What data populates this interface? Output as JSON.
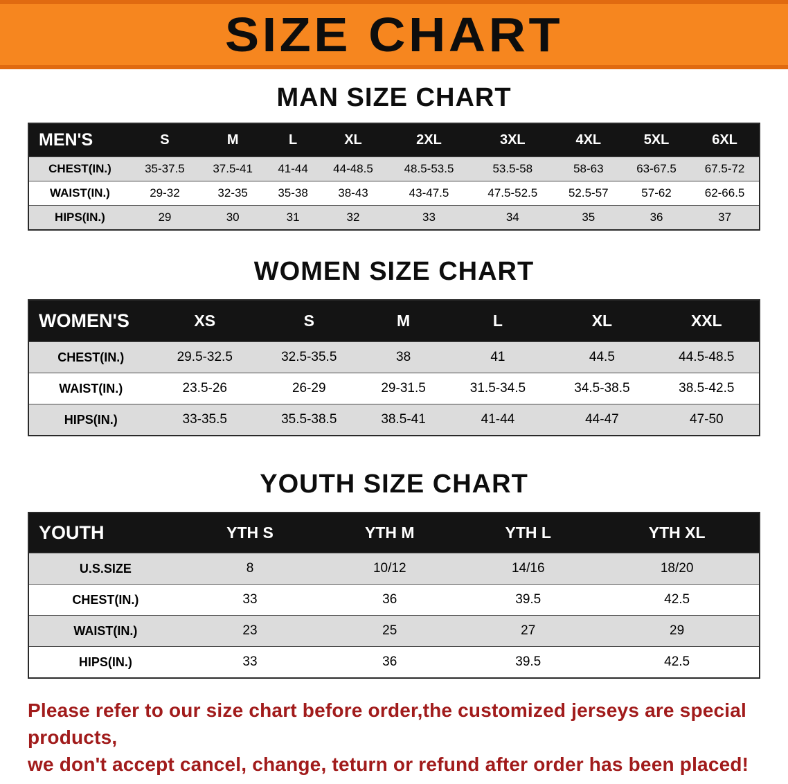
{
  "banner": {
    "title": "SIZE CHART"
  },
  "colors": {
    "banner_bg": "#F6861F",
    "banner_edge": "#E06A10",
    "header_bg": "#141414",
    "shaded_row": "#DCDCDC",
    "disclaimer_red": "#A11B1B"
  },
  "sections": [
    {
      "id": "men",
      "heading": "MAN SIZE CHART",
      "table": {
        "header": [
          "MEN'S",
          "S",
          "M",
          "L",
          "XL",
          "2XL",
          "3XL",
          "4XL",
          "5XL",
          "6XL"
        ],
        "rows": [
          [
            "CHEST(IN.)",
            "35-37.5",
            "37.5-41",
            "41-44",
            "44-48.5",
            "48.5-53.5",
            "53.5-58",
            "58-63",
            "63-67.5",
            "67.5-72"
          ],
          [
            "WAIST(IN.)",
            "29-32",
            "32-35",
            "35-38",
            "38-43",
            "43-47.5",
            "47.5-52.5",
            "52.5-57",
            "57-62",
            "62-66.5"
          ],
          [
            "HIPS(IN.)",
            "29",
            "30",
            "31",
            "32",
            "33",
            "34",
            "35",
            "36",
            "37"
          ]
        ]
      }
    },
    {
      "id": "women",
      "heading": "WOMEN SIZE CHART",
      "table": {
        "header": [
          "WOMEN'S",
          "XS",
          "S",
          "M",
          "L",
          "XL",
          "XXL"
        ],
        "rows": [
          [
            "CHEST(IN.)",
            "29.5-32.5",
            "32.5-35.5",
            "38",
            "41",
            "44.5",
            "44.5-48.5"
          ],
          [
            "WAIST(IN.)",
            "23.5-26",
            "26-29",
            "29-31.5",
            "31.5-34.5",
            "34.5-38.5",
            "38.5-42.5"
          ],
          [
            "HIPS(IN.)",
            "33-35.5",
            "35.5-38.5",
            "38.5-41",
            "41-44",
            "44-47",
            "47-50"
          ]
        ]
      }
    },
    {
      "id": "youth",
      "heading": "YOUTH SIZE CHART",
      "table": {
        "header": [
          "YOUTH",
          "YTH S",
          "YTH M",
          "YTH L",
          "YTH XL"
        ],
        "rows": [
          [
            "U.S.SIZE",
            "8",
            "10/12",
            "14/16",
            "18/20"
          ],
          [
            "CHEST(IN.)",
            "33",
            "36",
            "39.5",
            "42.5"
          ],
          [
            "WAIST(IN.)",
            "23",
            "25",
            "27",
            "29"
          ],
          [
            "HIPS(IN.)",
            "33",
            "36",
            "39.5",
            "42.5"
          ]
        ]
      }
    }
  ],
  "disclaimer": {
    "lines": [
      "Please refer to our size chart before order,the customized jerseys are special products,",
      "we don't accept cancel, change, teturn or refund after order has been placed!"
    ]
  }
}
